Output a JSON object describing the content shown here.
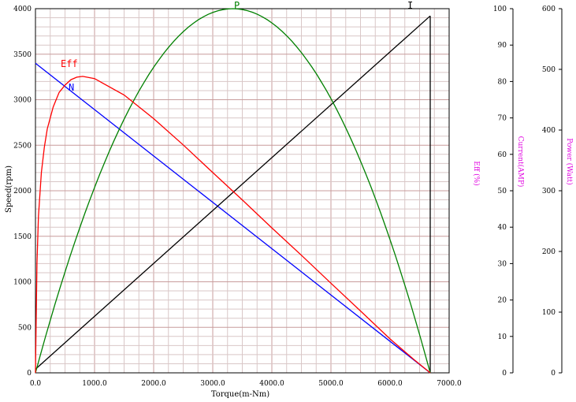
{
  "chart_data": {
    "type": "line",
    "title": "",
    "xlabel": "Torque(m-Nm)",
    "ylabel": "Speed(rpm)",
    "xlim": [
      0,
      7000
    ],
    "ylim": [
      0,
      4000
    ],
    "grid": true,
    "x_ticks": [
      "0.0",
      "1000.0",
      "2000.0",
      "3000.0",
      "4000.0",
      "5000.0",
      "6000.0",
      "7000.0"
    ],
    "y_ticks": [
      "0",
      "500",
      "1000",
      "1500",
      "2000",
      "2500",
      "3000",
      "3500",
      "4000"
    ],
    "secondary_axes": [
      {
        "label": "Eff (%)",
        "ticks": [
          "0",
          "10",
          "20",
          "30",
          "40",
          "50",
          "60",
          "70",
          "80",
          "90",
          "100"
        ],
        "range": [
          0,
          100
        ]
      },
      {
        "label": "Current(AMP)",
        "ticks": [],
        "range": [
          0,
          100
        ]
      },
      {
        "label": "Power (Watt)",
        "ticks": [
          "0",
          "100",
          "200",
          "300",
          "400",
          "500",
          "600"
        ],
        "range": [
          0,
          600
        ]
      }
    ],
    "series": [
      {
        "name": "N",
        "color": "#0000ff",
        "axis": "speed",
        "x": [
          0,
          6680
        ],
        "y": [
          3400,
          0
        ]
      },
      {
        "name": "I",
        "color": "#000000",
        "axis": "current",
        "x": [
          0,
          6680
        ],
        "y": [
          1,
          98
        ]
      },
      {
        "name": "P",
        "color": "#008000",
        "axis": "power",
        "x": [
          0,
          835,
          1670,
          2505,
          3340,
          4175,
          5010,
          5845,
          6680
        ],
        "y": [
          0,
          263,
          450,
          563,
          600,
          563,
          450,
          263,
          0
        ]
      },
      {
        "name": "Eff",
        "color": "#ff0000",
        "axis": "eff",
        "x": [
          0,
          25,
          50,
          100,
          150,
          200,
          300,
          400,
          500,
          600,
          700,
          800,
          1000,
          1500,
          2000,
          2500,
          3000,
          3500,
          4000,
          4500,
          5000,
          5500,
          6000,
          6400,
          6680
        ],
        "y": [
          0,
          30,
          43,
          55,
          62,
          67,
          73,
          77,
          79,
          80.5,
          81.2,
          81.4,
          80.8,
          76.3,
          69.8,
          62.6,
          55.0,
          47.5,
          39.8,
          32.3,
          24.6,
          17.0,
          9.3,
          3.7,
          0
        ]
      }
    ]
  }
}
